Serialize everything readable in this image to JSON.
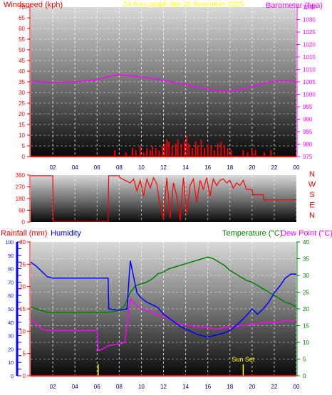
{
  "colors": {
    "wind": "#ff0000",
    "baro": "#ff00ff",
    "title": "#ffff00",
    "humidity": "#0000ff",
    "temperature": "#008000",
    "dew": "#ff00ff",
    "rain": "#ff0000",
    "humAxis": "#0000ff",
    "sunset": "#ffff00",
    "grid": "#ffffff",
    "tick": "#000080"
  },
  "chart_data": [
    {
      "type": "line",
      "id": "wind-baro",
      "title": "24 hour graph day   16 November 2025",
      "ylabel_left": "Windspeed (kph)",
      "ylabel_right": "Barometer (hpa)",
      "x_ticks": [
        "02",
        "04",
        "06",
        "08",
        "10",
        "12",
        "14",
        "16",
        "18",
        "20",
        "22",
        "00"
      ],
      "y_left_ticks": [
        0,
        5,
        10,
        15,
        20,
        25,
        30,
        35,
        40,
        45,
        50,
        55,
        60,
        65,
        70
      ],
      "y_left_range": [
        0,
        70
      ],
      "y_right_ticks": [
        975,
        980,
        985,
        990,
        995,
        1000,
        1005,
        1010,
        1015,
        1020,
        1025,
        1030,
        1035
      ],
      "y_right_range": [
        975,
        1035
      ],
      "grid": true,
      "series": [
        {
          "name": "Barometer (hpa)",
          "x": [
            0,
            1,
            2,
            3,
            4,
            5,
            6,
            7,
            7.5,
            8,
            8.5,
            9,
            10,
            11,
            12,
            13,
            14,
            15,
            16,
            17,
            18,
            19,
            20,
            21,
            22,
            23,
            24
          ],
          "y": [
            1005.3,
            1005,
            1004.8,
            1004.8,
            1005.1,
            1005.4,
            1005.8,
            1007.2,
            1007.6,
            1007.8,
            1007.7,
            1007.5,
            1007,
            1006.3,
            1005.6,
            1004.8,
            1003.9,
            1003,
            1002,
            1001.4,
            1001.3,
            1001.9,
            1003.1,
            1004.4,
            1005.3,
            1005.4,
            1005.1
          ]
        }
      ],
      "wind": [
        {
          "hour": 7.6,
          "speed": 3
        },
        {
          "hour": 8.6,
          "speed": 2
        },
        {
          "hour": 9.2,
          "speed": 4
        },
        {
          "hour": 9.5,
          "speed": 3
        },
        {
          "hour": 9.9,
          "speed": 5
        },
        {
          "hour": 10.2,
          "speed": 2
        },
        {
          "hour": 10.5,
          "speed": 4
        },
        {
          "hour": 10.8,
          "speed": 3
        },
        {
          "hour": 11.0,
          "speed": 5
        },
        {
          "hour": 11.3,
          "speed": 4
        },
        {
          "hour": 11.6,
          "speed": 3
        },
        {
          "hour": 11.9,
          "speed": 5
        },
        {
          "hour": 12.1,
          "speed": 6
        },
        {
          "hour": 12.3,
          "speed": 8
        },
        {
          "hour": 12.5,
          "speed": 7
        },
        {
          "hour": 12.8,
          "speed": 5
        },
        {
          "hour": 13.1,
          "speed": 6
        },
        {
          "hour": 13.3,
          "speed": 8
        },
        {
          "hour": 13.6,
          "speed": 6
        },
        {
          "hour": 13.9,
          "speed": 7
        },
        {
          "hour": 14.1,
          "speed": 10
        },
        {
          "hour": 14.3,
          "speed": 6
        },
        {
          "hour": 14.6,
          "speed": 4
        },
        {
          "hour": 14.9,
          "speed": 7
        },
        {
          "hour": 15.1,
          "speed": 5
        },
        {
          "hour": 15.4,
          "speed": 8
        },
        {
          "hour": 15.7,
          "speed": 4
        },
        {
          "hour": 16.0,
          "speed": 6
        },
        {
          "hour": 16.3,
          "speed": 5
        },
        {
          "hour": 16.6,
          "speed": 3
        },
        {
          "hour": 16.9,
          "speed": 6
        },
        {
          "hour": 17.2,
          "speed": 7
        },
        {
          "hour": 17.5,
          "speed": 5
        },
        {
          "hour": 17.8,
          "speed": 4
        },
        {
          "hour": 18.1,
          "speed": 3
        },
        {
          "hour": 19.2,
          "speed": 3
        },
        {
          "hour": 19.6,
          "speed": 2
        },
        {
          "hour": 20.0,
          "speed": 4
        },
        {
          "hour": 20.3,
          "speed": 3
        },
        {
          "hour": 21.1,
          "speed": 2
        },
        {
          "hour": 21.7,
          "speed": 3
        }
      ]
    },
    {
      "type": "line",
      "id": "wind-direction",
      "ylabels_left": [
        "360",
        "270",
        "180",
        "90",
        "0"
      ],
      "y_range": [
        0,
        360
      ],
      "direction_labels": [
        "N",
        "W",
        "S",
        "E",
        "N"
      ],
      "series": [
        {
          "name": "Wind direction",
          "x": [
            0,
            1,
            2,
            2.05,
            7,
            7.05,
            8,
            8.05,
            9,
            9.3,
            9.6,
            9.9,
            10.2,
            10.5,
            10.8,
            11.1,
            11.4,
            11.7,
            12,
            12.3,
            12.6,
            12.9,
            13.2,
            13.5,
            13.8,
            14.1,
            14.4,
            14.7,
            15,
            15.3,
            15.6,
            15.9,
            16.2,
            16.5,
            16.8,
            17.1,
            17.4,
            17.7,
            18,
            18.3,
            18.6,
            18.9,
            19.2,
            19.5,
            20,
            20.05,
            21,
            21.05,
            22,
            23,
            24
          ],
          "y": [
            355,
            355,
            355,
            5,
            5,
            355,
            355,
            340,
            300,
            330,
            240,
            320,
            200,
            330,
            260,
            340,
            290,
            120,
            20,
            340,
            30,
            300,
            200,
            10,
            340,
            60,
            280,
            330,
            150,
            320,
            250,
            340,
            200,
            330,
            280,
            320,
            330,
            300,
            320,
            260,
            300,
            280,
            320,
            250,
            250,
            210,
            210,
            170,
            170,
            170,
            170
          ]
        }
      ]
    },
    {
      "type": "line",
      "id": "humidity-temp",
      "ylabel_left_outer": "Rainfall (mm)",
      "ylabel_left_inner": "Humidity",
      "ylabel_right_left": "Temperature (°C)",
      "ylabel_right": "Dew Point (°C)",
      "x_ticks": [
        "02",
        "04",
        "06",
        "08",
        "10",
        "12",
        "14",
        "16",
        "18",
        "20",
        "22",
        "00"
      ],
      "humidity_ticks": [
        0,
        5,
        10,
        15,
        20,
        25,
        30,
        35,
        40,
        45,
        50,
        55,
        60,
        65,
        70,
        75,
        80,
        85,
        90,
        95,
        100
      ],
      "humidity_range": [
        0,
        100
      ],
      "rain_ticks": [
        0,
        5,
        10,
        15,
        20,
        25,
        30
      ],
      "rain_range": [
        0,
        30
      ],
      "temp_ticks": [
        0,
        5,
        10,
        15,
        20,
        25,
        30,
        35,
        40
      ],
      "temp_range": [
        0,
        40
      ],
      "grid": true,
      "annotation": "Sun Set",
      "markers": [
        6.1,
        19.2
      ],
      "series": [
        {
          "name": "Humidity",
          "x": [
            0,
            0.5,
            1,
            1.5,
            2,
            3,
            4,
            5,
            6,
            7,
            7.05,
            8,
            8.7,
            9,
            9.3,
            9.6,
            10,
            10.5,
            11,
            11.5,
            12,
            12.5,
            13,
            13.5,
            14,
            14.5,
            15,
            15.5,
            16,
            16.5,
            17,
            17.5,
            18,
            18.5,
            19,
            19.5,
            20,
            20.5,
            21,
            21.5,
            22,
            22.5,
            23,
            23.5,
            24
          ],
          "y": [
            85,
            82,
            78,
            74,
            73,
            73,
            73,
            73,
            73,
            73,
            50,
            49,
            50,
            86,
            74,
            62,
            58,
            55,
            53,
            51,
            46,
            43,
            40,
            37,
            35,
            33,
            31,
            30,
            29,
            30,
            31,
            32,
            34,
            37,
            41,
            45,
            50,
            46,
            50,
            55,
            62,
            67,
            73,
            76,
            76
          ]
        },
        {
          "name": "Temperature (°C)",
          "x": [
            0,
            0.5,
            1,
            1.5,
            2,
            3,
            4,
            5,
            6,
            7,
            8,
            8.5,
            9,
            9.5,
            10,
            10.5,
            11,
            11.5,
            12,
            12.5,
            13,
            13.5,
            14,
            14.5,
            15,
            15.5,
            16,
            16.5,
            17,
            17.5,
            18,
            18.5,
            19,
            19.5,
            20,
            20.5,
            21,
            21.5,
            22,
            22.5,
            23,
            23.5,
            24
          ],
          "y": [
            20.5,
            20,
            19.5,
            19,
            19,
            19,
            19,
            19,
            19,
            19,
            19.5,
            21,
            25,
            27,
            27.5,
            28,
            29,
            30.5,
            31,
            32,
            32.5,
            33,
            33.5,
            34,
            34.5,
            35,
            35.5,
            35,
            34,
            33,
            31.5,
            30.5,
            29.5,
            28.5,
            28,
            27,
            26,
            25,
            24,
            23,
            22,
            21.5,
            20.5
          ]
        },
        {
          "name": "Dew Point (°C)",
          "x": [
            0,
            0.5,
            1,
            1.5,
            2,
            3,
            4,
            5,
            6,
            6.1,
            6.5,
            7,
            8,
            8.5,
            9,
            9.3,
            9.6,
            10,
            10.5,
            11,
            11.5,
            12,
            12.5,
            13,
            13.5,
            14,
            14.5,
            15,
            15.5,
            16,
            16.5,
            17,
            17.5,
            18,
            18.5,
            19,
            19.5,
            20,
            20.5,
            21,
            21.5,
            22,
            22.5,
            23,
            23.5,
            24
          ],
          "y": [
            17,
            15.5,
            14,
            13.5,
            13.5,
            13.5,
            13.5,
            13.5,
            13.5,
            7.5,
            8,
            9,
            9.5,
            10,
            23,
            22,
            21,
            20,
            19.5,
            19,
            18,
            18,
            17,
            16,
            15.5,
            15,
            15,
            14.5,
            14.5,
            14.5,
            14,
            14,
            14.5,
            14.5,
            14.5,
            15,
            15,
            15.5,
            15.5,
            16,
            16,
            16,
            16,
            16.5,
            16.5,
            16.5
          ]
        }
      ]
    }
  ]
}
